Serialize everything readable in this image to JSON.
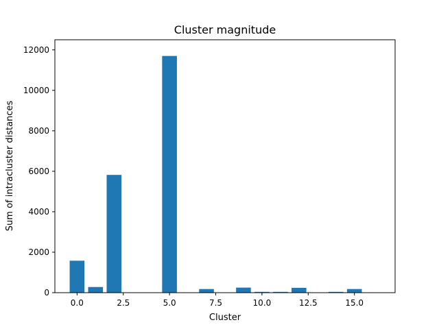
{
  "chart_data": {
    "type": "bar",
    "title": "Cluster magnitude",
    "xlabel": "Cluster",
    "ylabel": "Sum of intracluster distances",
    "x": [
      0,
      1,
      2,
      3,
      4,
      5,
      6,
      7,
      8,
      9,
      10,
      11,
      12,
      13,
      14,
      15,
      16
    ],
    "values": [
      1580,
      280,
      5820,
      0,
      0,
      11700,
      0,
      180,
      0,
      250,
      40,
      40,
      240,
      0,
      40,
      180,
      0
    ],
    "xlim": [
      -1.2,
      17.2
    ],
    "ylim": [
      0,
      12500
    ],
    "xticks": [
      0.0,
      2.5,
      5.0,
      7.5,
      10.0,
      12.5,
      15.0
    ],
    "xtick_labels": [
      "0.0",
      "2.5",
      "5.0",
      "7.5",
      "10.0",
      "12.5",
      "15.0"
    ],
    "yticks": [
      0,
      2000,
      4000,
      6000,
      8000,
      10000,
      12000
    ],
    "ytick_labels": [
      "0",
      "2000",
      "4000",
      "6000",
      "8000",
      "10000",
      "12000"
    ],
    "grid": false,
    "bar_color": "#1f77b4"
  }
}
